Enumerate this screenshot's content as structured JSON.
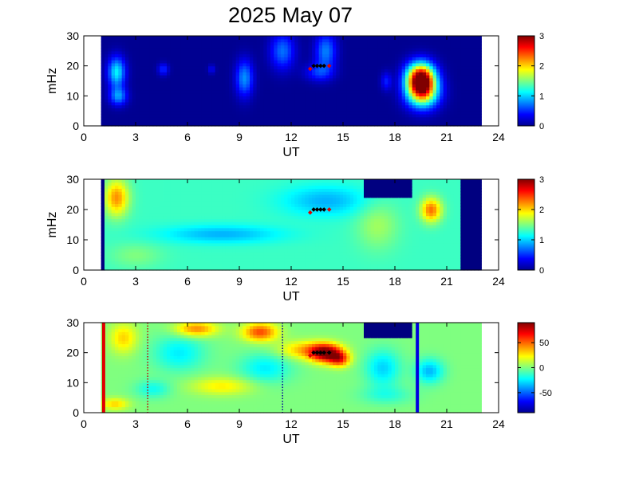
{
  "chart_data": {
    "title": "2025 May 07",
    "colormap": "jet",
    "panels": [
      {
        "type": "heatmap",
        "xlabel": "UT",
        "ylabel": "mHz",
        "xlim": [
          0,
          24
        ],
        "ylim": [
          0,
          30
        ],
        "xticks": [
          "0",
          "3",
          "6",
          "9",
          "12",
          "15",
          "18",
          "21",
          "24"
        ],
        "yticks": [
          "0",
          "10",
          "20",
          "30"
        ],
        "data_x_range": [
          1,
          23
        ],
        "colorbar": {
          "min": 0,
          "max": 3,
          "ticks": [
            "0",
            "1",
            "2",
            "3"
          ]
        },
        "background_value": 0.05,
        "features": [
          {
            "ut": 19.5,
            "mhz": 16,
            "value": 3.0,
            "ut_width": 0.8,
            "mhz_width": 5
          },
          {
            "ut": 19.6,
            "mhz": 11,
            "value": 1.8,
            "ut_width": 0.9,
            "mhz_width": 5
          },
          {
            "ut": 1.9,
            "mhz": 18,
            "value": 1.1,
            "ut_width": 0.5,
            "mhz_width": 5
          },
          {
            "ut": 2.0,
            "mhz": 10,
            "value": 0.8,
            "ut_width": 0.5,
            "mhz_width": 3
          },
          {
            "ut": 9.3,
            "mhz": 16,
            "value": 0.8,
            "ut_width": 0.5,
            "mhz_width": 6
          },
          {
            "ut": 11.5,
            "mhz": 25,
            "value": 0.7,
            "ut_width": 0.7,
            "mhz_width": 6
          },
          {
            "ut": 14.0,
            "mhz": 25,
            "value": 0.75,
            "ut_width": 0.6,
            "mhz_width": 6
          },
          {
            "ut": 13.6,
            "mhz": 18,
            "value": 0.5,
            "ut_width": 0.8,
            "mhz_width": 3
          },
          {
            "ut": 4.6,
            "mhz": 19,
            "value": 0.5,
            "ut_width": 0.3,
            "mhz_width": 2
          },
          {
            "ut": 17.5,
            "mhz": 15,
            "value": 0.45,
            "ut_width": 0.3,
            "mhz_width": 3
          },
          {
            "ut": 7.4,
            "mhz": 19,
            "value": 0.35,
            "ut_width": 0.2,
            "mhz_width": 1.5
          }
        ],
        "markers": [
          {
            "ut": 13.1,
            "mhz": 19,
            "color": "#e00000"
          },
          {
            "ut": 13.3,
            "mhz": 20,
            "color": "#000000"
          },
          {
            "ut": 13.5,
            "mhz": 20,
            "color": "#000000"
          },
          {
            "ut": 13.7,
            "mhz": 20,
            "color": "#000000"
          },
          {
            "ut": 13.9,
            "mhz": 20,
            "color": "#000000"
          },
          {
            "ut": 14.2,
            "mhz": 20,
            "color": "#e00000"
          }
        ],
        "vlines": []
      },
      {
        "type": "heatmap",
        "xlabel": "UT",
        "ylabel": "mHz",
        "xlim": [
          0,
          24
        ],
        "ylim": [
          0,
          30
        ],
        "xticks": [
          "0",
          "3",
          "6",
          "9",
          "12",
          "15",
          "18",
          "21",
          "24"
        ],
        "yticks": [
          "0",
          "10",
          "20",
          "30"
        ],
        "data_x_range": [
          1,
          23
        ],
        "colorbar": {
          "min": 0,
          "max": 3,
          "ticks": [
            "0",
            "1",
            "2",
            "3"
          ]
        },
        "background_value": 1.3,
        "features": [
          {
            "ut": 1.9,
            "mhz": 24,
            "value": 2.2,
            "ut_width": 0.7,
            "mhz_width": 6
          },
          {
            "ut": 20.1,
            "mhz": 20,
            "value": 2.3,
            "ut_width": 0.6,
            "mhz_width": 4
          },
          {
            "ut": 8.0,
            "mhz": 12,
            "value": 0.9,
            "ut_width": 3.5,
            "mhz_width": 3
          },
          {
            "ut": 14.0,
            "mhz": 23,
            "value": 0.9,
            "ut_width": 2.5,
            "mhz_width": 5
          },
          {
            "ut": 17.0,
            "mhz": 15,
            "value": 1.6,
            "ut_width": 1.2,
            "mhz_width": 8
          },
          {
            "ut": 3.0,
            "mhz": 5,
            "value": 1.5,
            "ut_width": 1.5,
            "mhz_width": 4
          }
        ],
        "fill_regions": [
          {
            "ut_start": 0.9,
            "ut_end": 1.1,
            "mhz_start": 0,
            "mhz_end": 30,
            "value": 0
          },
          {
            "ut_start": 21.8,
            "ut_end": 23.0,
            "mhz_start": 0,
            "mhz_end": 30,
            "value": 0
          },
          {
            "ut_start": 16.3,
            "ut_end": 19.0,
            "mhz_start": 24,
            "mhz_end": 30,
            "value": 0
          }
        ],
        "markers": [
          {
            "ut": 13.1,
            "mhz": 19,
            "color": "#e00000"
          },
          {
            "ut": 13.3,
            "mhz": 20,
            "color": "#000000"
          },
          {
            "ut": 13.5,
            "mhz": 20,
            "color": "#000000"
          },
          {
            "ut": 13.7,
            "mhz": 20,
            "color": "#000000"
          },
          {
            "ut": 13.9,
            "mhz": 20,
            "color": "#000000"
          },
          {
            "ut": 14.2,
            "mhz": 20,
            "color": "#e00000"
          }
        ],
        "vlines": []
      },
      {
        "type": "heatmap",
        "xlabel": "UT",
        "ylabel": "",
        "xlim": [
          0,
          24
        ],
        "ylim": [
          0,
          30
        ],
        "xticks": [
          "0",
          "3",
          "6",
          "9",
          "12",
          "15",
          "18",
          "21",
          "24"
        ],
        "yticks": [
          "0",
          "10",
          "20",
          "30"
        ],
        "data_x_range": [
          1,
          23
        ],
        "colorbar": {
          "min": -90,
          "max": 90,
          "ticks": [
            "50",
            "0",
            "-50"
          ],
          "tick_values": [
            50,
            0,
            -50
          ]
        },
        "background_value": 0,
        "features": [
          {
            "ut": 14.0,
            "mhz": 20,
            "value": 85,
            "ut_width": 0.9,
            "mhz_width": 3
          },
          {
            "ut": 14.8,
            "mhz": 18,
            "value": 55,
            "ut_width": 0.6,
            "mhz_width": 2.5
          },
          {
            "ut": 10.2,
            "mhz": 27,
            "value": 55,
            "ut_width": 1.0,
            "mhz_width": 3
          },
          {
            "ut": 6.5,
            "mhz": 28,
            "value": 45,
            "ut_width": 1.2,
            "mhz_width": 2.5
          },
          {
            "ut": 12.8,
            "mhz": 21,
            "value": 35,
            "ut_width": 1.5,
            "mhz_width": 3
          },
          {
            "ut": 2.3,
            "mhz": 25,
            "value": 30,
            "ut_width": 0.8,
            "mhz_width": 5
          },
          {
            "ut": 8.0,
            "mhz": 9,
            "value": 25,
            "ut_width": 1.8,
            "mhz_width": 3
          },
          {
            "ut": 1.8,
            "mhz": 3,
            "value": 30,
            "ut_width": 0.8,
            "mhz_width": 2
          },
          {
            "ut": 5.5,
            "mhz": 20,
            "value": -25,
            "ut_width": 1.5,
            "mhz_width": 6
          },
          {
            "ut": 10.5,
            "mhz": 15,
            "value": -25,
            "ut_width": 1.5,
            "mhz_width": 5
          },
          {
            "ut": 4.0,
            "mhz": 8,
            "value": -20,
            "ut_width": 1.0,
            "mhz_width": 3
          },
          {
            "ut": 17.3,
            "mhz": 15,
            "value": -30,
            "ut_width": 1.0,
            "mhz_width": 6
          },
          {
            "ut": 20.0,
            "mhz": 14,
            "value": -35,
            "ut_width": 0.8,
            "mhz_width": 4
          },
          {
            "ut": 17.5,
            "mhz": 6,
            "value": -15,
            "ut_width": 1.5,
            "mhz_width": 3
          }
        ],
        "fill_regions": [
          {
            "ut_start": 16.3,
            "ut_end": 19.0,
            "mhz_start": 25,
            "mhz_end": 30,
            "value": -95
          }
        ],
        "markers": [
          {
            "ut": 13.1,
            "mhz": 19,
            "color": "#e00000"
          },
          {
            "ut": 13.3,
            "mhz": 20,
            "color": "#000000"
          },
          {
            "ut": 13.5,
            "mhz": 20,
            "color": "#000000"
          },
          {
            "ut": 13.7,
            "mhz": 20,
            "color": "#000000"
          },
          {
            "ut": 13.9,
            "mhz": 20,
            "color": "#000000"
          },
          {
            "ut": 14.2,
            "mhz": 20,
            "color": "#000000"
          }
        ],
        "vlines": [
          {
            "ut": 1.15,
            "color": "#e00000",
            "style": "solid"
          },
          {
            "ut": 3.7,
            "color": "#c00000",
            "style": "dotted"
          },
          {
            "ut": 11.5,
            "color": "#00009a",
            "style": "dotted"
          },
          {
            "ut": 19.3,
            "color": "#0000e0",
            "style": "solid"
          }
        ]
      }
    ]
  }
}
